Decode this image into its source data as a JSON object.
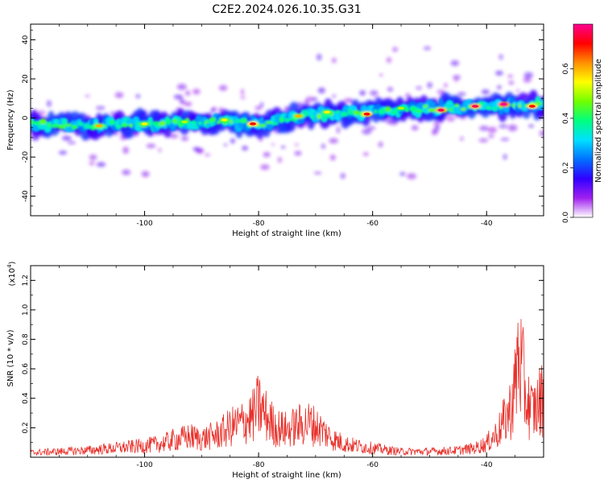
{
  "title": "C2E2.2024.026.10.35.G31",
  "chart_data": [
    {
      "type": "heatmap",
      "xlabel": "Height of straight line (km)",
      "ylabel": "Frequency (Hz)",
      "xlim": [
        -120,
        -30
      ],
      "ylim": [
        -50,
        48
      ],
      "x_ticks": [
        -100,
        -80,
        -60,
        -40
      ],
      "y_ticks": [
        -40,
        -20,
        0,
        20,
        40
      ],
      "x_tick_labels": [
        "-100",
        "-80",
        "-60",
        "-40"
      ],
      "y_tick_labels": [
        "-40",
        "-20",
        "0",
        "20",
        "40"
      ],
      "ridge": {
        "x": [
          -120,
          -110,
          -100,
          -90,
          -80,
          -70,
          -60,
          -50,
          -40,
          -30
        ],
        "y": [
          -3,
          -4,
          -3,
          -2,
          -3,
          2,
          3,
          5,
          6,
          7
        ]
      },
      "peaks": [
        {
          "x": -108,
          "y": -4,
          "amp": 0.6
        },
        {
          "x": -100,
          "y": -3,
          "amp": 0.55
        },
        {
          "x": -93,
          "y": -2,
          "amp": 0.5
        },
        {
          "x": -86,
          "y": -1,
          "amp": 0.55
        },
        {
          "x": -81,
          "y": -3,
          "amp": 0.7
        },
        {
          "x": -73,
          "y": 1,
          "amp": 0.6
        },
        {
          "x": -68,
          "y": 3,
          "amp": 0.55
        },
        {
          "x": -61,
          "y": 2,
          "amp": 0.7
        },
        {
          "x": -55,
          "y": 5,
          "amp": 0.5
        },
        {
          "x": -48,
          "y": 4,
          "amp": 0.75
        },
        {
          "x": -42,
          "y": 6,
          "amp": 0.75
        },
        {
          "x": -37,
          "y": 7,
          "amp": 0.8
        },
        {
          "x": -32,
          "y": 6,
          "amp": 0.7
        }
      ]
    },
    {
      "type": "colorbar",
      "label": "Normalized spectral amplitude",
      "range": [
        0.0,
        0.78
      ],
      "ticks": [
        0.0,
        0.2,
        0.4,
        0.6
      ],
      "tick_labels": [
        "0.0",
        "0.2",
        "0.4",
        "0.6"
      ],
      "colors": [
        "#ffffff",
        "#a020f0",
        "#3000ff",
        "#0070ff",
        "#00e0ff",
        "#00ff80",
        "#70ff00",
        "#ffff00",
        "#ff9000",
        "#ff0000",
        "#ff0090"
      ]
    },
    {
      "type": "line",
      "xlabel": "Height of straight line (km)",
      "ylabel": "SNR (10 * v/v)",
      "multiplier_label": "(x10",
      "multiplier_exp": "4",
      "multiplier_close": ")",
      "xlim": [
        -120,
        -30
      ],
      "ylim": [
        0,
        1.3
      ],
      "x_ticks": [
        -100,
        -80,
        -60,
        -40
      ],
      "y_ticks": [
        0.2,
        0.4,
        0.6,
        0.8,
        1.0,
        1.2
      ],
      "x_tick_labels": [
        "-100",
        "-80",
        "-60",
        "-40"
      ],
      "y_tick_labels": [
        "0.2",
        "0.4",
        "0.6",
        "0.8",
        "1.0",
        "1.2"
      ],
      "color": "#e8302a",
      "series": [
        {
          "x": [
            -120,
            -115,
            -110,
            -105,
            -100,
            -97,
            -95,
            -92,
            -90,
            -87,
            -85,
            -83,
            -81,
            -80,
            -79,
            -77,
            -75,
            -73,
            -71,
            -69,
            -67,
            -65,
            -63,
            -60,
            -57,
            -55,
            -50,
            -45,
            -42,
            -40,
            -38,
            -36,
            -35,
            -34.5,
            -34,
            -33,
            -32,
            -31,
            -30
          ],
          "y": [
            0.04,
            0.05,
            0.06,
            0.08,
            0.1,
            0.12,
            0.15,
            0.18,
            0.16,
            0.2,
            0.26,
            0.3,
            0.36,
            0.45,
            0.38,
            0.26,
            0.24,
            0.28,
            0.3,
            0.24,
            0.16,
            0.12,
            0.1,
            0.08,
            0.06,
            0.05,
            0.05,
            0.06,
            0.08,
            0.12,
            0.22,
            0.4,
            0.6,
            0.9,
            0.8,
            0.5,
            0.4,
            0.45,
            0.55
          ]
        }
      ]
    }
  ]
}
